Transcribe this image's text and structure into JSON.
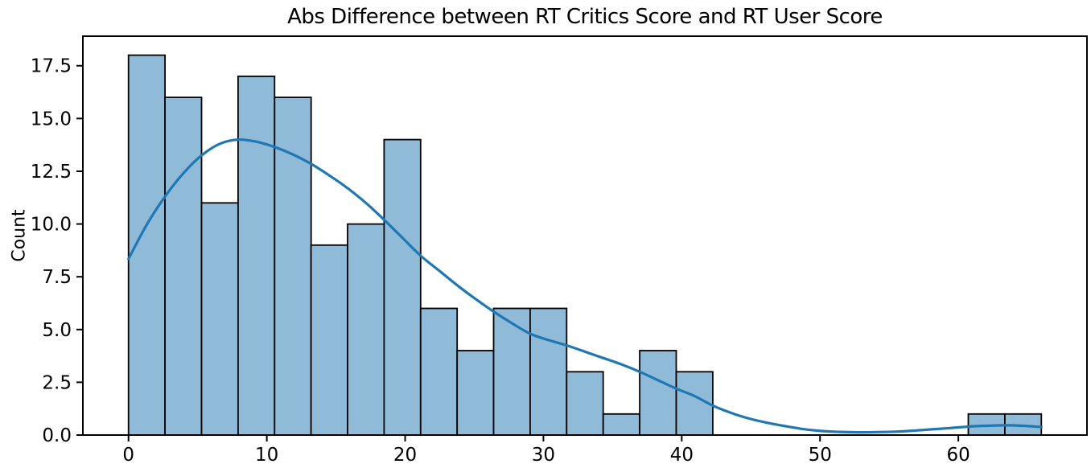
{
  "title": "Abs Difference between RT Critics Score and RT User Score",
  "ylabel": "Count",
  "xlabel": "",
  "chart_data": {
    "type": "bar",
    "subtype": "histogram_with_kde",
    "title": "Abs Difference between RT Critics Score and RT User Score",
    "xlabel": "",
    "ylabel": "Count",
    "grid": false,
    "legend": null,
    "xlim": [
      -3.3,
      69.3
    ],
    "ylim": [
      0,
      18.9
    ],
    "xticks": [
      0,
      10,
      20,
      30,
      40,
      50,
      60
    ],
    "xtick_labels": [
      "0",
      "10",
      "20",
      "30",
      "40",
      "50",
      "60"
    ],
    "yticks": [
      0.0,
      2.5,
      5.0,
      7.5,
      10.0,
      12.5,
      15.0,
      17.5
    ],
    "ytick_labels": [
      "0.0",
      "2.5",
      "5.0",
      "7.5",
      "10.0",
      "12.5",
      "15.0",
      "17.5"
    ],
    "bin_width": 2.64,
    "bin_edges": [
      0,
      2.64,
      5.28,
      7.92,
      10.56,
      13.2,
      15.84,
      18.48,
      21.12,
      23.76,
      26.4,
      29.04,
      31.68,
      34.32,
      36.96,
      39.6,
      42.24,
      44.88,
      47.52,
      50.16,
      52.8,
      55.44,
      58.08,
      60.72,
      63.36,
      66.0
    ],
    "counts": [
      18,
      16,
      11,
      17,
      16,
      9,
      10,
      14,
      6,
      4,
      6,
      6,
      3,
      1,
      4,
      3,
      0,
      0,
      0,
      0,
      0,
      0,
      0,
      1,
      1
    ],
    "kde": {
      "x": [
        0,
        1.3,
        2.64,
        3.96,
        5.28,
        6.6,
        7.92,
        9.24,
        10.56,
        11.88,
        13.2,
        14.52,
        15.84,
        17.16,
        18.48,
        19.8,
        21.12,
        22.44,
        23.76,
        25.08,
        26.4,
        27.72,
        29.04,
        30.36,
        31.68,
        33.0,
        34.32,
        35.64,
        36.96,
        38.28,
        39.6,
        40.92,
        42.24,
        43.56,
        44.88,
        46.2,
        47.52,
        48.84,
        50.16,
        51.48,
        52.8,
        54.12,
        55.44,
        56.76,
        58.08,
        59.4,
        60.72,
        62.04,
        63.36,
        64.68,
        66.0
      ],
      "y": [
        8.35,
        9.95,
        11.3,
        12.4,
        13.25,
        13.8,
        14.0,
        13.9,
        13.65,
        13.3,
        12.85,
        12.3,
        11.7,
        11.0,
        10.2,
        9.35,
        8.5,
        7.8,
        7.1,
        6.45,
        5.85,
        5.3,
        4.8,
        4.5,
        4.25,
        3.95,
        3.65,
        3.35,
        3.0,
        2.6,
        2.2,
        1.85,
        1.4,
        1.05,
        0.78,
        0.58,
        0.42,
        0.28,
        0.19,
        0.15,
        0.13,
        0.14,
        0.16,
        0.21,
        0.27,
        0.33,
        0.4,
        0.44,
        0.46,
        0.44,
        0.38
      ]
    },
    "colors": {
      "bar_fill": "#8fbbd9",
      "bar_edge": "#000000",
      "kde_line": "#1f77b4",
      "axis": "#000000",
      "text": "#000000",
      "background": "#ffffff"
    }
  }
}
